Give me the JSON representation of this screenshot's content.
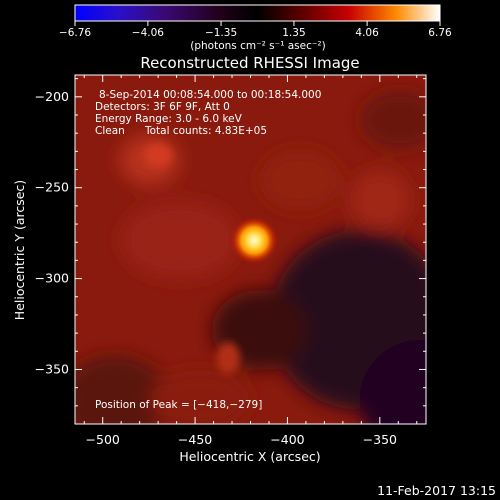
{
  "chart_data": {
    "type": "heatmap",
    "title": "Reconstructed RHESSI Image",
    "xlabel": "Heliocentric X (arcsec)",
    "ylabel": "Heliocentric Y (arcsec)",
    "xlim": [
      -515,
      -325
    ],
    "ylim": [
      -380,
      -188
    ],
    "x_ticks": [
      -500,
      -450,
      -400,
      -350
    ],
    "x_tick_labels": [
      "−500",
      "−450",
      "−400",
      "−350"
    ],
    "y_ticks": [
      -200,
      -250,
      -300,
      -350
    ],
    "y_tick_labels": [
      "−200",
      "−250",
      "−300",
      "−350"
    ],
    "colorbar": {
      "min": -6.76,
      "max": 6.76,
      "ticks": [
        -6.76,
        -4.06,
        -1.35,
        1.35,
        4.06,
        6.76
      ],
      "tick_labels": [
        "−6.76",
        "−4.06",
        "−1.35",
        "1.35",
        "4.06",
        "6.76"
      ],
      "units_label": "(photons cm⁻² s⁻¹ asec⁻²)"
    },
    "peak": [
      -418,
      -279
    ],
    "annotations": {
      "time_range": "8-Sep-2014 00:08:54.000 to 00:18:54.000",
      "detectors": "Detectors: 3F 6F 9F, Att 0",
      "energy": "Energy Range: 3.0 - 6.0 keV",
      "clean_label": "Clean",
      "total_counts": "Total counts: 4.83E+05",
      "peak_position": "Position of Peak = [−418,−279]"
    },
    "grid": false
  },
  "footer_date": "11-Feb-2017 13:15"
}
